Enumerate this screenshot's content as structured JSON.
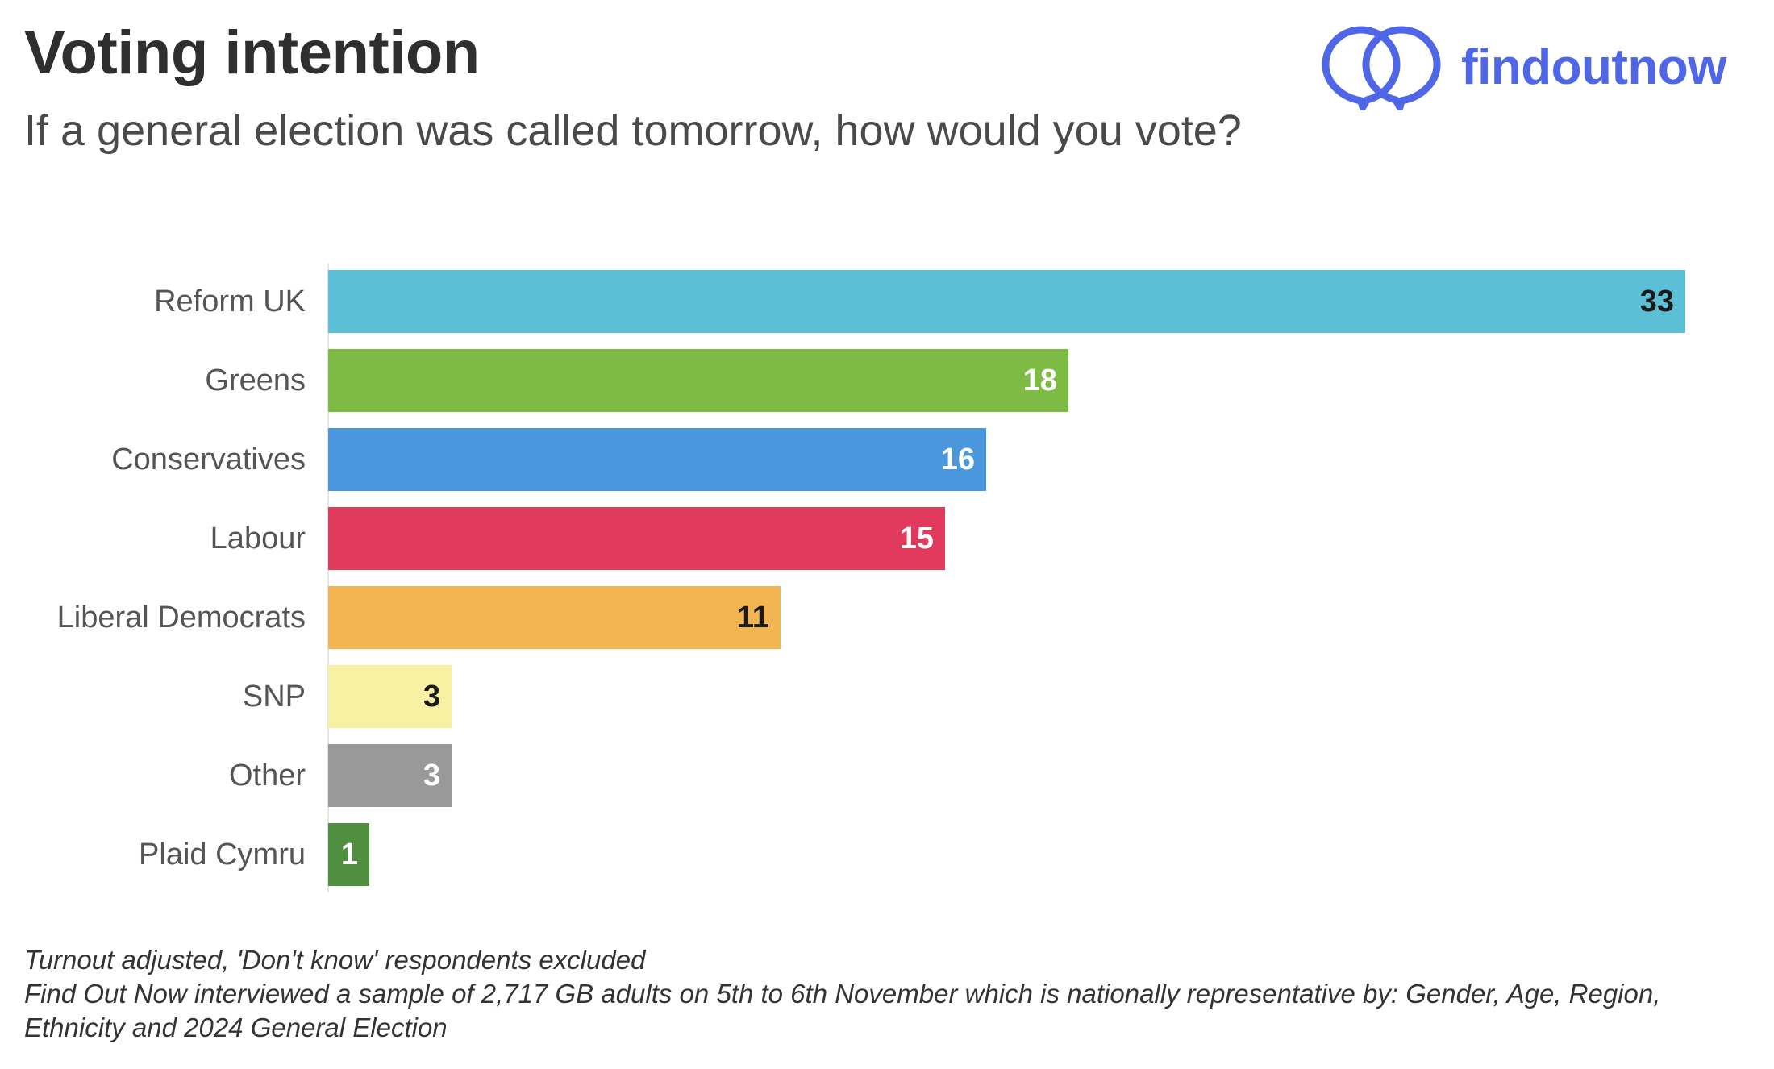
{
  "header": {
    "title": "Voting intention",
    "subtitle": "If a general election was called tomorrow, how would you vote?"
  },
  "logo": {
    "text": "findoutnow",
    "icon": "overlapping-speech-bubbles-icon",
    "color": "#4f67e6"
  },
  "chart_data": {
    "type": "bar",
    "orientation": "horizontal",
    "title": "",
    "xlabel": "",
    "ylabel": "",
    "categories": [
      "Reform UK",
      "Greens",
      "Conservatives",
      "Labour",
      "Liberal Democrats",
      "SNP",
      "Other",
      "Plaid Cymru"
    ],
    "values": [
      33,
      18,
      16,
      15,
      11,
      3,
      3,
      1
    ],
    "colors": [
      "#5bbfd6",
      "#7dbb45",
      "#4a97dd",
      "#e23a5c",
      "#f2b552",
      "#f8f0a2",
      "#999999",
      "#4f8f3e"
    ],
    "label_colors": [
      "#1a1a1a",
      "#ffffff",
      "#ffffff",
      "#ffffff",
      "#1a1a1a",
      "#1a1a1a",
      "#ffffff",
      "#ffffff"
    ],
    "xlim": [
      0,
      33
    ],
    "grid": false,
    "legend": "none"
  },
  "notes": [
    "Turnout adjusted, 'Don't know' respondents excluded",
    "Find Out Now interviewed a sample of 2,717 GB adults on 5th to 6th November which is nationally representative by: Gender, Age, Region, Ethnicity and 2024 General Election"
  ]
}
